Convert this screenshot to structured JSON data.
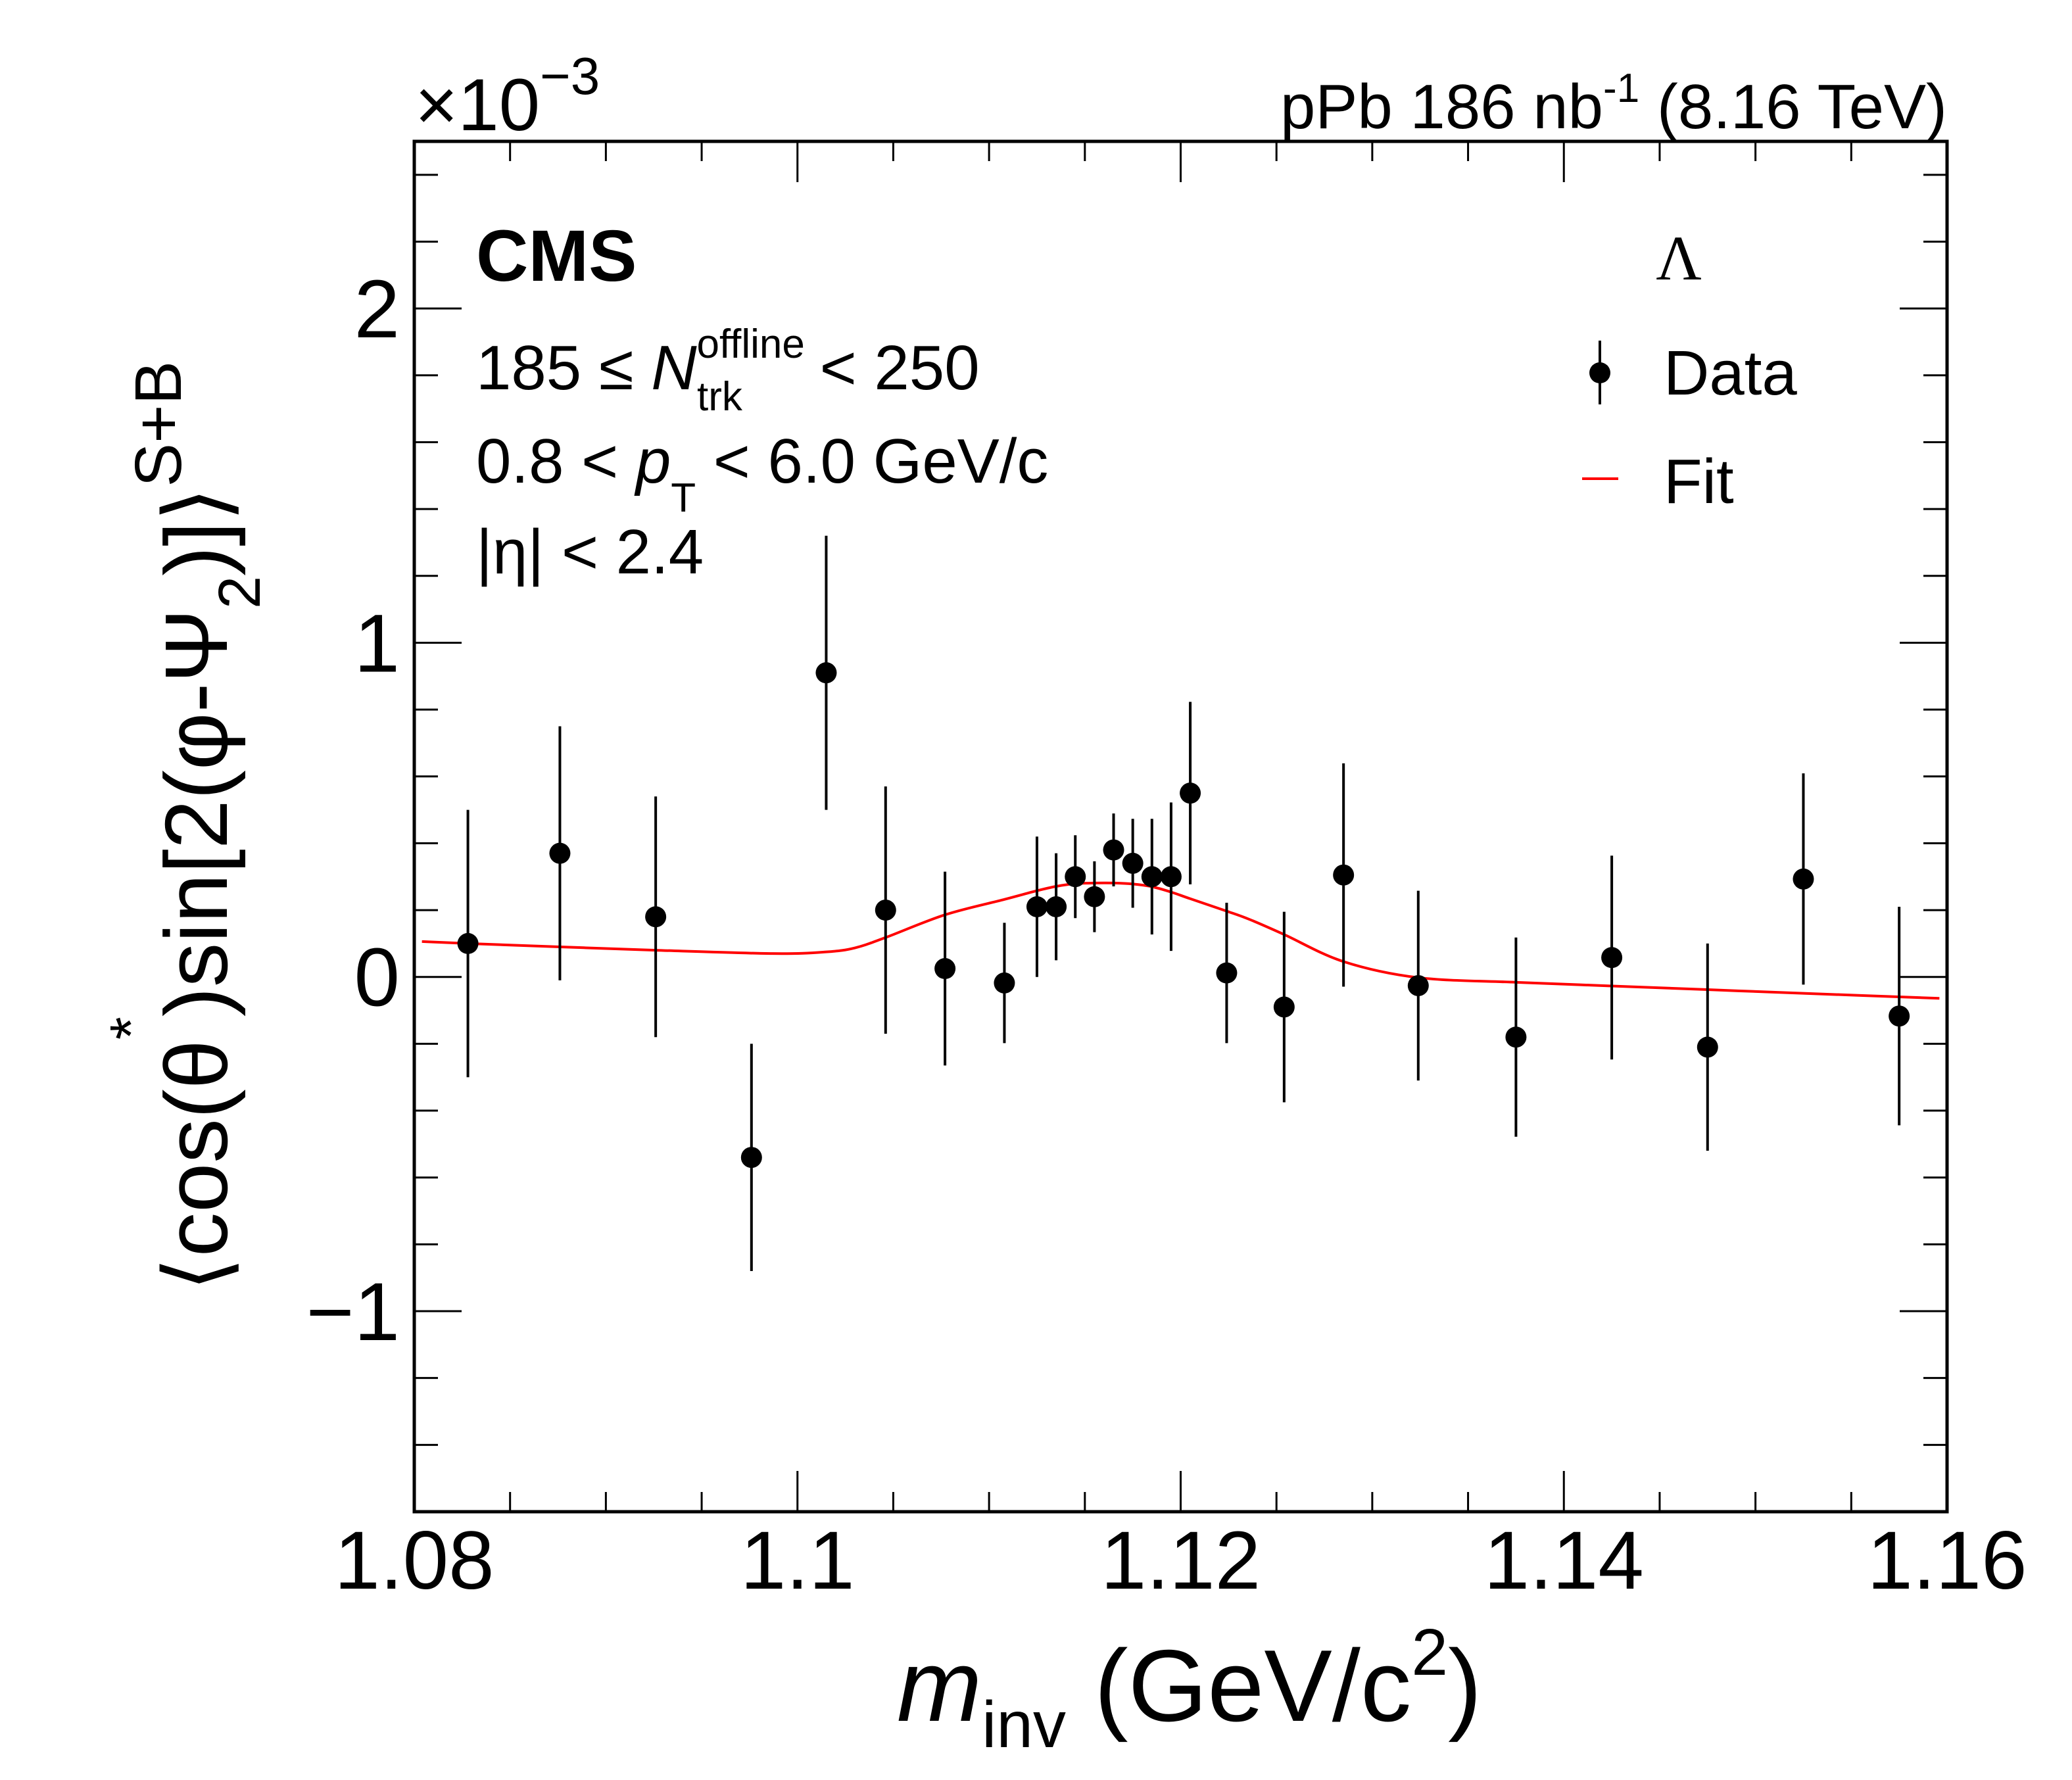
{
  "chart_data": {
    "type": "scatter",
    "title": "",
    "experiment_label": "CMS",
    "top_right_label": {
      "prefix": "pPb 186 nb",
      "sup": "-1",
      "suffix": " (8.16 TeV)"
    },
    "y_multiplier": {
      "base": "×10",
      "exponent": "−3"
    },
    "xlabel": {
      "main": "m",
      "sub": "inv",
      "units": " (GeV/c",
      "units_sup": "2",
      "close": ")"
    },
    "ylabel": {
      "open": "⟨cos(θ",
      "star": "*",
      "mid": ")sin[2(φ-Ψ",
      "sub": "2",
      "close": ")]⟩",
      "sup": "S+B"
    },
    "xlim": [
      1.08,
      1.16
    ],
    "ylim": [
      -1.6,
      2.5
    ],
    "x_ticks": {
      "major": [
        1.08,
        1.1,
        1.12,
        1.14,
        1.16
      ],
      "labels": [
        "1.08",
        "1.1",
        "1.12",
        "1.14",
        "1.16"
      ],
      "minor_step": 0.005
    },
    "y_ticks": {
      "major": [
        -1,
        0,
        1,
        2
      ],
      "labels": [
        "−1",
        "0",
        "1",
        "2"
      ],
      "minor_step": 0.2
    },
    "grid": false,
    "annotations": [
      {
        "id": "mult",
        "parts": [
          "185 ≤ ",
          "N",
          "offline",
          "trk",
          " < 250"
        ]
      },
      {
        "id": "pt",
        "parts": [
          "0.8 < ",
          "p",
          "T",
          " < 6.0 GeV/c"
        ]
      },
      {
        "id": "eta",
        "parts": [
          "|η| < 2.4"
        ]
      }
    ],
    "legend": {
      "position": "top-right",
      "header": "Λ",
      "entries": [
        {
          "label": "Data",
          "style": "marker-errorbar",
          "color": "#000000"
        },
        {
          "label": "Fit",
          "style": "line",
          "color": "#ff0000"
        }
      ]
    },
    "series": [
      {
        "name": "Data",
        "color": "#000000",
        "x": [
          1.0828,
          1.0876,
          1.0926,
          1.0976,
          1.1015,
          1.1046,
          1.1077,
          1.1108,
          1.1125,
          1.1135,
          1.1145,
          1.1155,
          1.1165,
          1.1175,
          1.1185,
          1.1195,
          1.1205,
          1.1224,
          1.1254,
          1.1285,
          1.1324,
          1.1375,
          1.1425,
          1.1475,
          1.1525,
          1.1575
        ],
        "y": [
          0.1,
          0.37,
          0.18,
          -0.54,
          0.91,
          0.2,
          0.025,
          -0.018,
          0.21,
          0.21,
          0.3,
          0.24,
          0.38,
          0.34,
          0.3,
          0.3,
          0.55,
          0.012,
          -0.09,
          0.305,
          -0.026,
          -0.18,
          0.058,
          -0.21,
          0.293,
          -0.117
        ],
        "yerr": [
          0.4,
          0.38,
          0.36,
          0.34,
          0.41,
          0.37,
          0.29,
          0.18,
          0.21,
          0.16,
          0.124,
          0.106,
          0.109,
          0.133,
          0.173,
          0.222,
          0.273,
          0.21,
          0.285,
          0.334,
          0.284,
          0.298,
          0.305,
          0.31,
          0.316,
          0.327
        ]
      },
      {
        "name": "Fit",
        "color": "#ff0000",
        "x": [
          1.0804,
          1.0828,
          1.0876,
          1.0926,
          1.0987,
          1.1015,
          1.103,
          1.1046,
          1.1077,
          1.1108,
          1.1125,
          1.1135,
          1.1145,
          1.1155,
          1.1165,
          1.1175,
          1.1185,
          1.1195,
          1.1205,
          1.1224,
          1.1236,
          1.1254,
          1.1285,
          1.1324,
          1.1375,
          1.1425,
          1.1475,
          1.1525,
          1.1596
        ],
        "y": [
          0.106,
          0.1,
          0.09,
          0.08,
          0.07,
          0.075,
          0.087,
          0.118,
          0.186,
          0.232,
          0.258,
          0.271,
          0.279,
          0.281,
          0.281,
          0.278,
          0.27,
          0.254,
          0.234,
          0.197,
          0.172,
          0.127,
          0.046,
          -0.002,
          -0.016,
          -0.027,
          -0.038,
          -0.049,
          -0.064
        ]
      }
    ]
  }
}
